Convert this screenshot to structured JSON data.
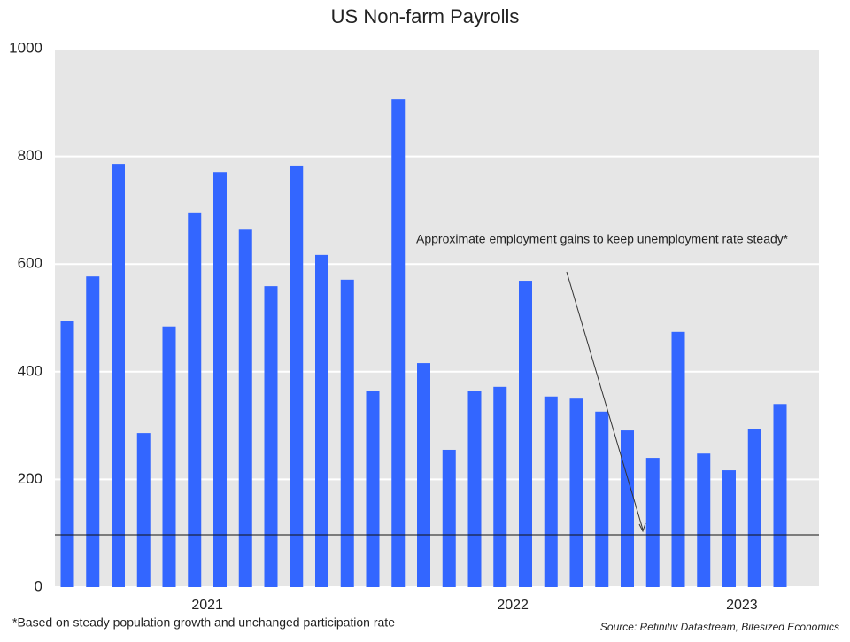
{
  "chart_data": {
    "type": "bar",
    "title": "US Non-farm Payrolls",
    "categories": [
      null,
      null,
      null,
      null,
      null,
      "2021",
      null,
      null,
      null,
      null,
      null,
      null,
      null,
      null,
      null,
      null,
      null,
      "2022",
      null,
      null,
      null,
      null,
      null,
      null,
      null,
      null,
      "2023",
      null,
      null
    ],
    "values": [
      495,
      577,
      786,
      286,
      484,
      696,
      771,
      664,
      559,
      783,
      617,
      571,
      365,
      906,
      416,
      255,
      365,
      372,
      569,
      354,
      350,
      326,
      291,
      240,
      474,
      248,
      217,
      294,
      340
    ],
    "color": "#3366ff",
    "ylim": [
      0,
      1000
    ],
    "yticks": [
      0,
      200,
      400,
      600,
      800,
      1000
    ],
    "grid": true,
    "reference_line": 97,
    "annotation": "Approximate employment gains to keep unemployment rate steady*",
    "footnote": "*Based on steady population growth and unchanged participation rate",
    "source": "Source: Refinitiv Datastream, Bitesized Economics"
  }
}
